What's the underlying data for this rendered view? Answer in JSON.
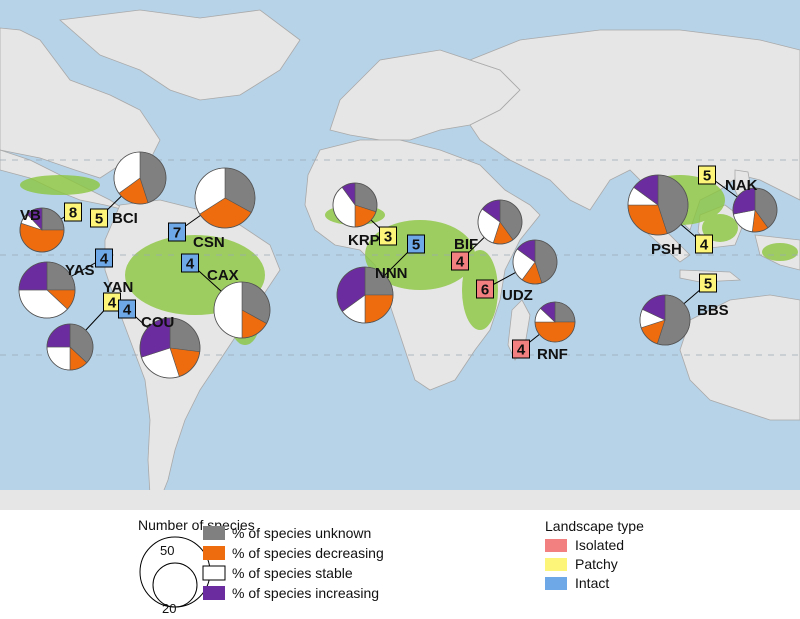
{
  "colors": {
    "ocean": "#b7d3e8",
    "land": "#e6e6e6",
    "coast": "#a9a9a9",
    "forest": "#8cc63f",
    "unknown": "#808080",
    "decreasing": "#ef6c0e",
    "stable": "#ffffff",
    "increasing": "#6a2c9e",
    "isolated": "#f28080",
    "patchy": "#fdf57a",
    "intact": "#6fa8e6"
  },
  "sites": [
    {
      "code": "VB",
      "landscape": "patchy",
      "species_count": 8,
      "pie": {
        "unknown": 25,
        "decreasing": 55,
        "stable": 8,
        "increasing": 12
      }
    },
    {
      "code": "BCI",
      "landscape": "patchy",
      "species_count": 5,
      "pie": {
        "unknown": 45,
        "decreasing": 20,
        "stable": 35,
        "increasing": 0
      }
    },
    {
      "code": "CSN",
      "landscape": "intact",
      "species_count": 7,
      "pie": {
        "unknown": 33,
        "decreasing": 33,
        "stable": 34,
        "increasing": 0
      }
    },
    {
      "code": "YAS",
      "landscape": "intact",
      "species_count": 4,
      "pie": {
        "unknown": 25,
        "decreasing": 12,
        "stable": 38,
        "increasing": 25
      }
    },
    {
      "code": "CAX",
      "landscape": "intact",
      "species_count": 4,
      "pie": {
        "unknown": 33,
        "decreasing": 17,
        "stable": 50,
        "increasing": 0
      }
    },
    {
      "code": "YAN",
      "landscape": "patchy",
      "species_count": 4,
      "pie": {
        "unknown": 37,
        "decreasing": 13,
        "stable": 25,
        "increasing": 25
      }
    },
    {
      "code": "COU",
      "landscape": "intact",
      "species_count": 4,
      "pie": {
        "unknown": 27,
        "decreasing": 18,
        "stable": 25,
        "increasing": 30
      }
    },
    {
      "code": "KRP",
      "landscape": "patchy",
      "species_count": 3,
      "pie": {
        "unknown": 30,
        "decreasing": 20,
        "stable": 40,
        "increasing": 10
      }
    },
    {
      "code": "NNN",
      "landscape": "intact",
      "species_count": 5,
      "pie": {
        "unknown": 25,
        "decreasing": 25,
        "stable": 15,
        "increasing": 35
      }
    },
    {
      "code": "BIF",
      "landscape": "isolated",
      "species_count": 4,
      "pie": {
        "unknown": 40,
        "decreasing": 15,
        "stable": 30,
        "increasing": 15
      }
    },
    {
      "code": "UDZ",
      "landscape": "isolated",
      "species_count": 6,
      "pie": {
        "unknown": 45,
        "decreasing": 15,
        "stable": 25,
        "increasing": 15
      }
    },
    {
      "code": "RNF",
      "landscape": "isolated",
      "species_count": 4,
      "pie": {
        "unknown": 25,
        "decreasing": 50,
        "stable": 12,
        "increasing": 13
      }
    },
    {
      "code": "PSH",
      "landscape": "patchy",
      "species_count": 4,
      "pie": {
        "unknown": 45,
        "decreasing": 30,
        "stable": 10,
        "increasing": 15
      }
    },
    {
      "code": "NAK",
      "landscape": "patchy",
      "species_count": 5,
      "pie": {
        "unknown": 40,
        "decreasing": 12,
        "stable": 20,
        "increasing": 28
      }
    },
    {
      "code": "BBS",
      "landscape": "patchy",
      "species_count": 5,
      "pie": {
        "unknown": 55,
        "decreasing": 15,
        "stable": 12,
        "increasing": 18
      }
    }
  ],
  "legend": {
    "size_title": "Number of species",
    "size_large": "50",
    "size_small": "20",
    "pie_items": [
      {
        "key": "unknown",
        "label": "% of species unknown"
      },
      {
        "key": "decreasing",
        "label": "% of species decreasing"
      },
      {
        "key": "stable",
        "label": "% of species stable"
      },
      {
        "key": "increasing",
        "label": "% of species increasing"
      }
    ],
    "landscape_title": "Landscape type",
    "landscape_items": [
      {
        "key": "isolated",
        "label": "Isolated"
      },
      {
        "key": "patchy",
        "label": "Patchy"
      },
      {
        "key": "intact",
        "label": "Intact"
      }
    ]
  }
}
